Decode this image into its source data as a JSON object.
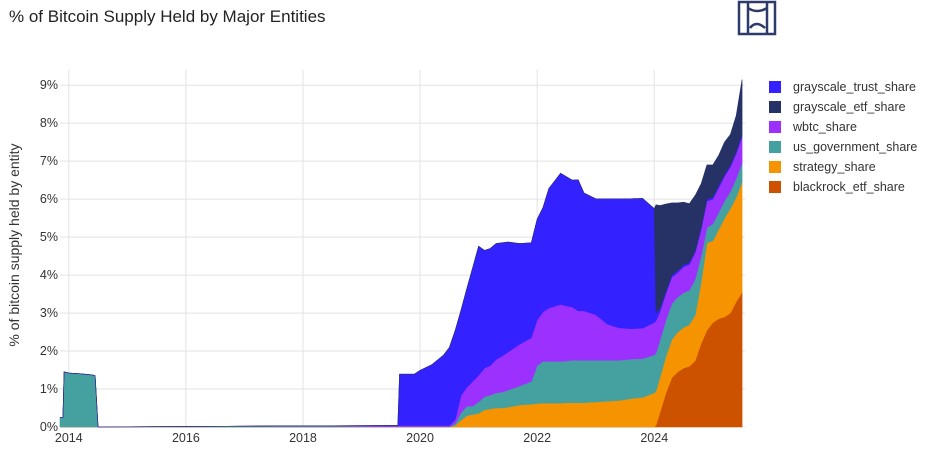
{
  "title": "% of Bitcoin Supply Held by Major Entities",
  "logo_icon": "ism-monogram-logo",
  "chart_data": {
    "type": "area",
    "stacked": true,
    "ylabel": "% of bitcoin supply held by entity",
    "xlabel": "",
    "xlim": [
      2013.85,
      2025.55
    ],
    "ylim": [
      0,
      9.4
    ],
    "x_ticks": [
      2014,
      2016,
      2018,
      2020,
      2022,
      2024
    ],
    "x_tick_labels": [
      "2014",
      "2016",
      "2018",
      "2020",
      "2022",
      "2024"
    ],
    "y_ticks": [
      0,
      1,
      2,
      3,
      4,
      5,
      6,
      7,
      8,
      9
    ],
    "y_tick_labels": [
      "0%",
      "1%",
      "2%",
      "3%",
      "4%",
      "5%",
      "6%",
      "7%",
      "8%",
      "9%"
    ],
    "grid": true,
    "legend_position": "right",
    "x": [
      2013.85,
      2013.9,
      2013.92,
      2014.0,
      2014.2,
      2014.4,
      2014.45,
      2014.5,
      2016.7,
      2017.5,
      2018.5,
      2019.5,
      2019.62,
      2019.65,
      2019.9,
      2020.0,
      2020.2,
      2020.4,
      2020.5,
      2020.6,
      2020.7,
      2020.8,
      2020.9,
      2021.0,
      2021.1,
      2021.2,
      2021.3,
      2021.4,
      2021.5,
      2021.7,
      2021.9,
      2022.0,
      2022.1,
      2022.2,
      2022.3,
      2022.4,
      2022.5,
      2022.6,
      2022.7,
      2022.8,
      2023.0,
      2023.2,
      2023.4,
      2023.6,
      2023.8,
      2024.0,
      2024.03,
      2024.1,
      2024.2,
      2024.3,
      2024.4,
      2024.5,
      2024.6,
      2024.7,
      2024.8,
      2024.9,
      2025.0,
      2025.1,
      2025.2,
      2025.3,
      2025.4,
      2025.5
    ],
    "series": [
      {
        "name": "blackrock_etf_share",
        "color": "#cc5200",
        "values": [
          0,
          0,
          0,
          0,
          0,
          0,
          0,
          0,
          0,
          0,
          0,
          0,
          0,
          0,
          0,
          0,
          0,
          0,
          0,
          0,
          0,
          0,
          0,
          0,
          0,
          0,
          0,
          0,
          0,
          0,
          0,
          0,
          0,
          0,
          0,
          0,
          0,
          0,
          0,
          0,
          0,
          0,
          0,
          0,
          0,
          0,
          0.05,
          0.4,
          0.9,
          1.3,
          1.45,
          1.55,
          1.6,
          1.75,
          2.2,
          2.55,
          2.75,
          2.85,
          2.9,
          3.0,
          3.3,
          3.55
        ]
      },
      {
        "name": "strategy_share",
        "color": "#f59400",
        "values": [
          0,
          0,
          0,
          0,
          0,
          0,
          0,
          0,
          0,
          0,
          0,
          0,
          0,
          0,
          0,
          0,
          0,
          0,
          0,
          0.04,
          0.18,
          0.3,
          0.33,
          0.36,
          0.45,
          0.48,
          0.5,
          0.5,
          0.52,
          0.58,
          0.6,
          0.62,
          0.63,
          0.63,
          0.63,
          0.63,
          0.64,
          0.64,
          0.64,
          0.64,
          0.66,
          0.68,
          0.7,
          0.75,
          0.78,
          0.9,
          0.9,
          0.92,
          0.96,
          1.0,
          1.05,
          1.07,
          1.1,
          1.2,
          1.6,
          2.3,
          2.15,
          2.35,
          2.6,
          2.75,
          2.75,
          2.9
        ]
      },
      {
        "name": "us_government_share",
        "color": "#45a0a0",
        "values": [
          0.25,
          0.25,
          1.45,
          1.42,
          1.4,
          1.37,
          1.35,
          0,
          0.02,
          0.02,
          0.02,
          0.01,
          0.01,
          0.01,
          0.01,
          0.01,
          0.01,
          0.01,
          0.01,
          0.05,
          0.2,
          0.25,
          0.22,
          0.3,
          0.35,
          0.36,
          0.4,
          0.42,
          0.45,
          0.5,
          0.6,
          1.0,
          1.1,
          1.1,
          1.1,
          1.1,
          1.1,
          1.12,
          1.12,
          1.12,
          1.1,
          1.08,
          1.06,
          1.04,
          1.02,
          1.0,
          1.0,
          0.98,
          0.96,
          0.95,
          0.92,
          0.92,
          0.9,
          0.95,
          0.7,
          0.4,
          0.45,
          0.45,
          0.45,
          0.45,
          0.5,
          0.5
        ]
      },
      {
        "name": "wbtc_share",
        "color": "#9b30ff",
        "values": [
          0,
          0,
          0,
          0,
          0,
          0,
          0,
          0,
          0,
          0.01,
          0.01,
          0.03,
          0.03,
          0.03,
          0.03,
          0.03,
          0.03,
          0.03,
          0.03,
          0.1,
          0.45,
          0.5,
          0.65,
          0.7,
          0.75,
          0.78,
          0.88,
          0.95,
          1.0,
          1.1,
          1.15,
          1.2,
          1.3,
          1.4,
          1.45,
          1.5,
          1.45,
          1.4,
          1.3,
          1.3,
          1.2,
          0.95,
          0.85,
          0.8,
          0.8,
          0.85,
          0.85,
          0.75,
          0.7,
          0.7,
          0.65,
          0.68,
          0.68,
          0.7,
          0.7,
          0.7,
          0.65,
          0.65,
          0.65,
          0.65,
          0.65,
          0.7
        ]
      },
      {
        "name": "grayscale_trust_share",
        "color": "#3322ff",
        "values": [
          0,
          0,
          0,
          0,
          0,
          0,
          0,
          0,
          0,
          0,
          0,
          0,
          0,
          1.35,
          1.35,
          1.45,
          1.6,
          1.85,
          2.05,
          2.35,
          2.25,
          2.6,
          3.0,
          3.4,
          3.1,
          3.08,
          3.05,
          2.98,
          2.9,
          2.65,
          2.5,
          2.65,
          2.75,
          3.15,
          3.3,
          3.45,
          3.4,
          3.34,
          3.45,
          3.1,
          3.05,
          3.3,
          3.4,
          3.42,
          3.42,
          3.0,
          0.2,
          0.08,
          0.05,
          0.05,
          0.05,
          0.05,
          0.05,
          0.05,
          0.05,
          0.05,
          0.05,
          0.05,
          0.05,
          0.05,
          0.05,
          0.05
        ]
      },
      {
        "name": "grayscale_etf_share",
        "color": "#263266",
        "values": [
          0,
          0,
          0,
          0,
          0,
          0,
          0,
          0,
          0,
          0,
          0,
          0,
          0,
          0,
          0,
          0,
          0,
          0,
          0,
          0,
          0,
          0,
          0,
          0,
          0,
          0,
          0,
          0,
          0,
          0,
          0,
          0,
          0,
          0,
          0,
          0,
          0,
          0,
          0,
          0,
          0,
          0,
          0,
          0,
          0,
          0,
          2.85,
          2.7,
          2.3,
          1.9,
          1.78,
          1.65,
          1.55,
          1.45,
          1.15,
          0.9,
          0.85,
          0.8,
          0.85,
          0.8,
          0.95,
          1.45
        ]
      }
    ],
    "legend_order": [
      "grayscale_trust_share",
      "grayscale_etf_share",
      "wbtc_share",
      "us_government_share",
      "strategy_share",
      "blackrock_etf_share"
    ]
  }
}
